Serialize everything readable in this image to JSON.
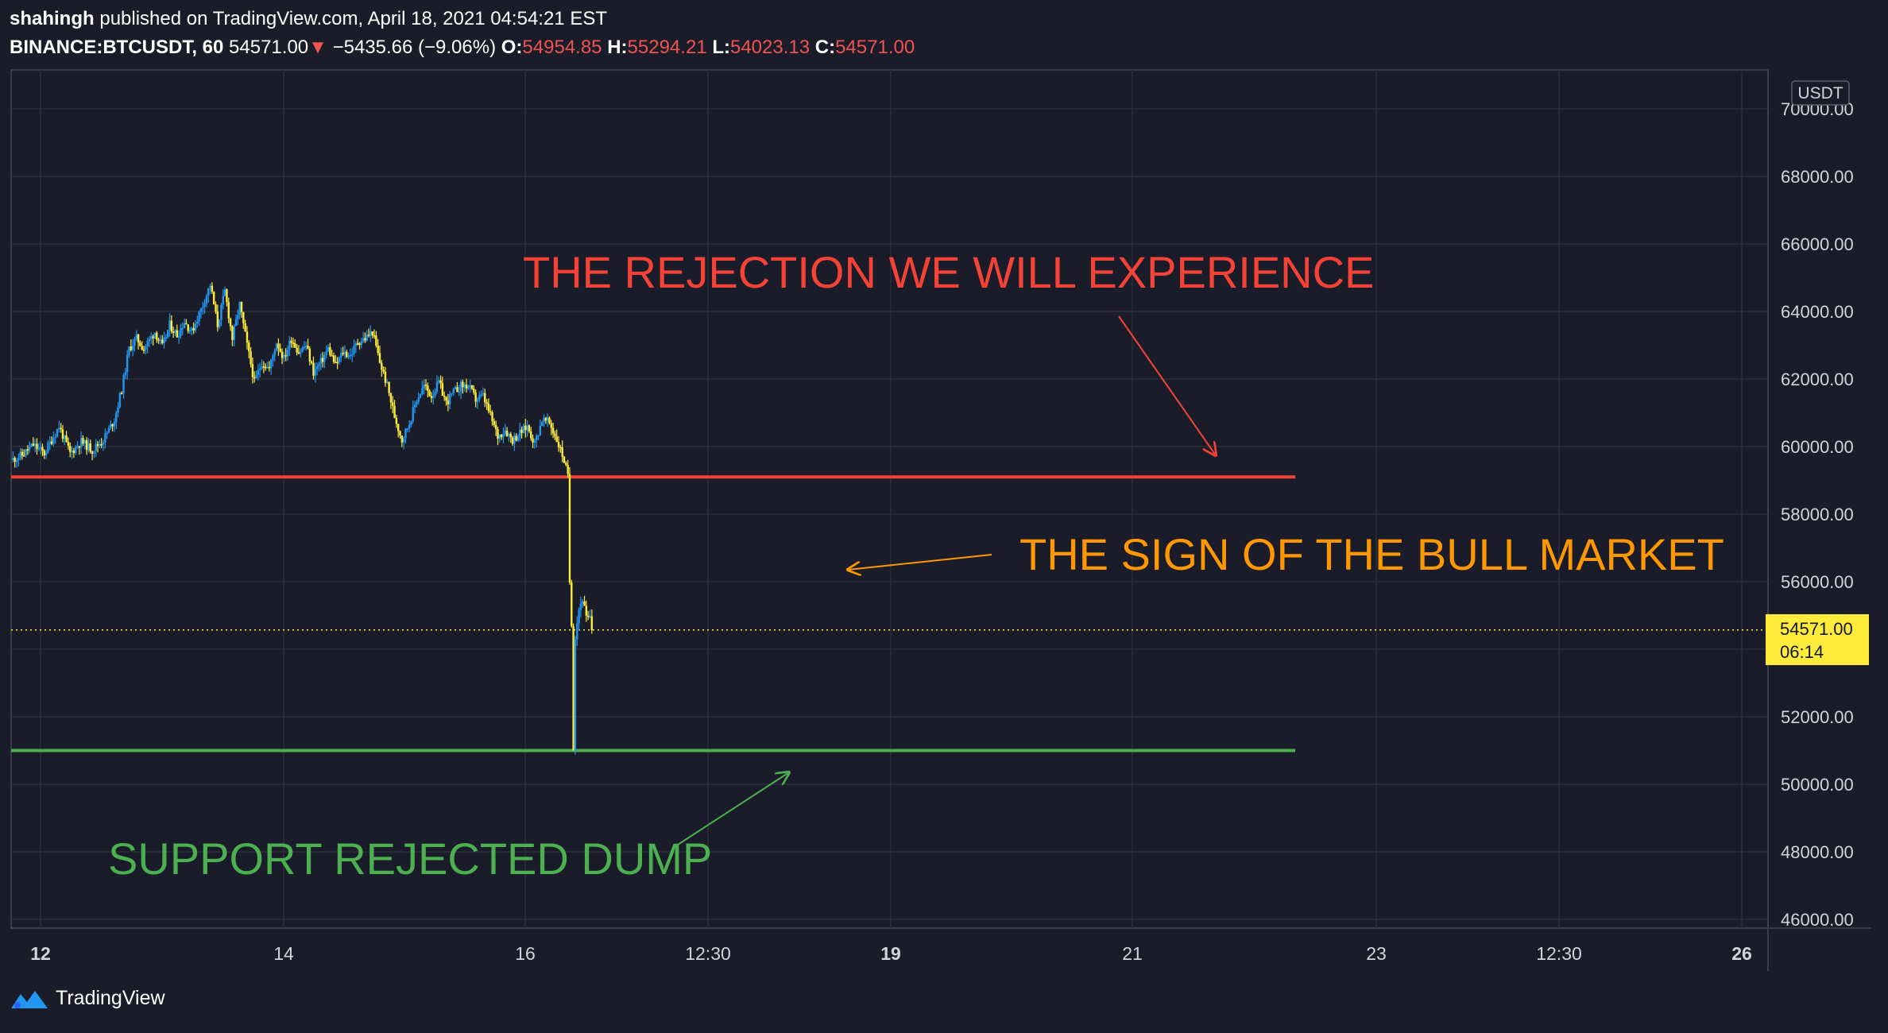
{
  "header": {
    "author": "shahingh",
    "published_text": "published on TradingView.com, April 18, 2021 04:54:21 EST",
    "symbol": "BINANCE:BTCUSDT, 60",
    "last": "54571.00",
    "change_arrow": "▼",
    "change": "−5435.66 (−9.06%)",
    "o_label": "O:",
    "o_value": "54954.85",
    "h_label": "H:",
    "h_value": "55294.21",
    "l_label": "L:",
    "l_value": "54023.13",
    "c_label": "C:",
    "c_value": "54571.00"
  },
  "currency_badge": "USDT",
  "last_price_badge": {
    "price": "54571.00",
    "countdown": "06:14"
  },
  "footer": {
    "brand": "TradingView"
  },
  "colors": {
    "background": "#1a1d29",
    "grid": "#2a2e39",
    "up": "#2196f3",
    "down": "#ffeb3b",
    "resistance": "#f44336",
    "support": "#4caf50",
    "callout_orange": "#ff9800",
    "last_price": "#ffeb3b",
    "header_red": "#f05350"
  },
  "chart_data": {
    "type": "candlestick",
    "symbol": "BINANCE:BTCUSDT",
    "interval": "60",
    "ylim": [
      45500,
      71000
    ],
    "y_ticks": [
      46000,
      48000,
      50000,
      52000,
      54000,
      56000,
      58000,
      60000,
      62000,
      64000,
      66000,
      68000,
      70000
    ],
    "y_tick_labels": [
      "46000.00",
      "48000.00",
      "50000.00",
      "52000.00",
      "54000.00",
      "56000.00",
      "58000.00",
      "60000.00",
      "62000.00",
      "64000.00",
      "66000.00",
      "68000.00",
      "70000.00"
    ],
    "x_tick_labels": [
      "12",
      "14",
      "16",
      "12:30",
      "19",
      "21",
      "23",
      "12:30",
      "26"
    ],
    "x_bold_ticks": [
      "12",
      "19",
      "26"
    ],
    "last_price": 54571.0,
    "horizontal_levels": [
      {
        "name": "resistance",
        "price": 59100,
        "color": "#f44336"
      },
      {
        "name": "support",
        "price": 51000,
        "color": "#4caf50"
      }
    ],
    "annotations": [
      {
        "text": "THE REJECTION WE WILL EXPERIENCE",
        "color": "#f44336"
      },
      {
        "text": "THE SIGN OF THE BULL MARKET",
        "color": "#ff9800"
      },
      {
        "text": "SUPPORT REJECTED DUMP",
        "color": "#4caf50"
      }
    ],
    "price_path": [
      [
        0,
        59600
      ],
      [
        6,
        59750
      ],
      [
        12,
        60050
      ],
      [
        18,
        59800
      ],
      [
        26,
        60600
      ],
      [
        32,
        59800
      ],
      [
        38,
        60150
      ],
      [
        44,
        59900
      ],
      [
        50,
        60200
      ],
      [
        56,
        60800
      ],
      [
        60,
        61700
      ],
      [
        64,
        62900
      ],
      [
        68,
        63200
      ],
      [
        72,
        62900
      ],
      [
        78,
        63400
      ],
      [
        82,
        62950
      ],
      [
        86,
        63600
      ],
      [
        90,
        63300
      ],
      [
        94,
        63700
      ],
      [
        98,
        63400
      ],
      [
        104,
        64200
      ],
      [
        108,
        64800
      ],
      [
        112,
        63600
      ],
      [
        116,
        64600
      ],
      [
        120,
        63200
      ],
      [
        124,
        64200
      ],
      [
        128,
        63000
      ],
      [
        132,
        61900
      ],
      [
        136,
        62500
      ],
      [
        140,
        62300
      ],
      [
        144,
        63100
      ],
      [
        148,
        62600
      ],
      [
        152,
        63200
      ],
      [
        156,
        62800
      ],
      [
        160,
        63000
      ],
      [
        164,
        62200
      ],
      [
        168,
        62500
      ],
      [
        172,
        62900
      ],
      [
        176,
        62400
      ],
      [
        180,
        62800
      ],
      [
        184,
        62700
      ],
      [
        188,
        63100
      ],
      [
        192,
        63200
      ],
      [
        196,
        63400
      ],
      [
        200,
        62500
      ],
      [
        204,
        61800
      ],
      [
        208,
        60900
      ],
      [
        212,
        60200
      ],
      [
        216,
        60700
      ],
      [
        220,
        61400
      ],
      [
        224,
        61800
      ],
      [
        228,
        61500
      ],
      [
        232,
        61900
      ],
      [
        236,
        61300
      ],
      [
        240,
        61600
      ],
      [
        244,
        61800
      ],
      [
        248,
        61800
      ],
      [
        252,
        61400
      ],
      [
        256,
        61500
      ],
      [
        260,
        60900
      ],
      [
        264,
        60300
      ],
      [
        268,
        60500
      ],
      [
        272,
        60200
      ],
      [
        276,
        60400
      ],
      [
        280,
        60600
      ],
      [
        284,
        60100
      ],
      [
        288,
        60800
      ],
      [
        292,
        60700
      ],
      [
        296,
        60200
      ],
      [
        300,
        59600
      ],
      [
        302,
        59100
      ],
      [
        303,
        56000
      ],
      [
        304,
        54800
      ],
      [
        305,
        51100
      ],
      [
        306,
        54400
      ],
      [
        308,
        55200
      ],
      [
        310,
        55500
      ],
      [
        312,
        54900
      ],
      [
        314,
        54900
      ],
      [
        315,
        54571
      ]
    ]
  }
}
